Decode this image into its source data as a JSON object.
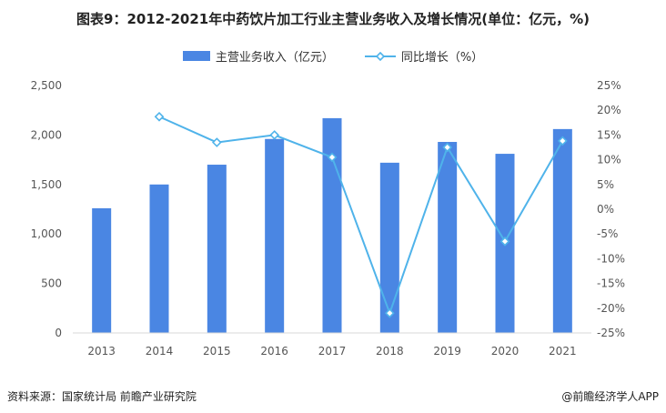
{
  "title": "图表9：2012-2021年中药饮片加工行业主营业务收入及增长情况(单位：亿元，%)",
  "colors": {
    "bar": "#4a86e3",
    "line": "#4fb3ea",
    "axis_text": "#555555"
  },
  "footer": {
    "source": "资料来源：国家统计局 前瞻产业研究院",
    "brand": "@前瞻经济学人APP"
  },
  "chart_data": {
    "type": "bar",
    "title": "图表9：2012-2021年中药饮片加工行业主营业务收入及增长情况(单位：亿元，%)",
    "categories": [
      "2013",
      "2014",
      "2015",
      "2016",
      "2017",
      "2018",
      "2019",
      "2020",
      "2021"
    ],
    "series": [
      {
        "name": "主营业务收入（亿元）",
        "type": "bar",
        "axis": "left",
        "values": [
          1260,
          1500,
          1700,
          1960,
          2170,
          1720,
          1930,
          1810,
          2060
        ]
      },
      {
        "name": "同比增长（%）",
        "type": "line",
        "axis": "right",
        "values": [
          null,
          18.7,
          13.5,
          15.0,
          10.5,
          -21.0,
          12.5,
          -6.5,
          13.8
        ]
      }
    ],
    "y_left": {
      "min": 0,
      "max": 2500,
      "ticks": [
        0,
        500,
        1000,
        1500,
        2000,
        2500
      ],
      "tick_labels": [
        "0",
        "500",
        "1,000",
        "1,500",
        "2,000",
        "2,500"
      ]
    },
    "y_right": {
      "min": -25,
      "max": 25,
      "ticks": [
        -25,
        -20,
        -15,
        -10,
        -5,
        0,
        5,
        10,
        15,
        20,
        25
      ],
      "tick_labels": [
        "-25%",
        "-20%",
        "-15%",
        "-10%",
        "-5%",
        "0%",
        "5%",
        "10%",
        "15%",
        "20%",
        "25%"
      ]
    },
    "xlabel": "",
    "ylabel": "",
    "grid": false,
    "legend": "top-center"
  }
}
